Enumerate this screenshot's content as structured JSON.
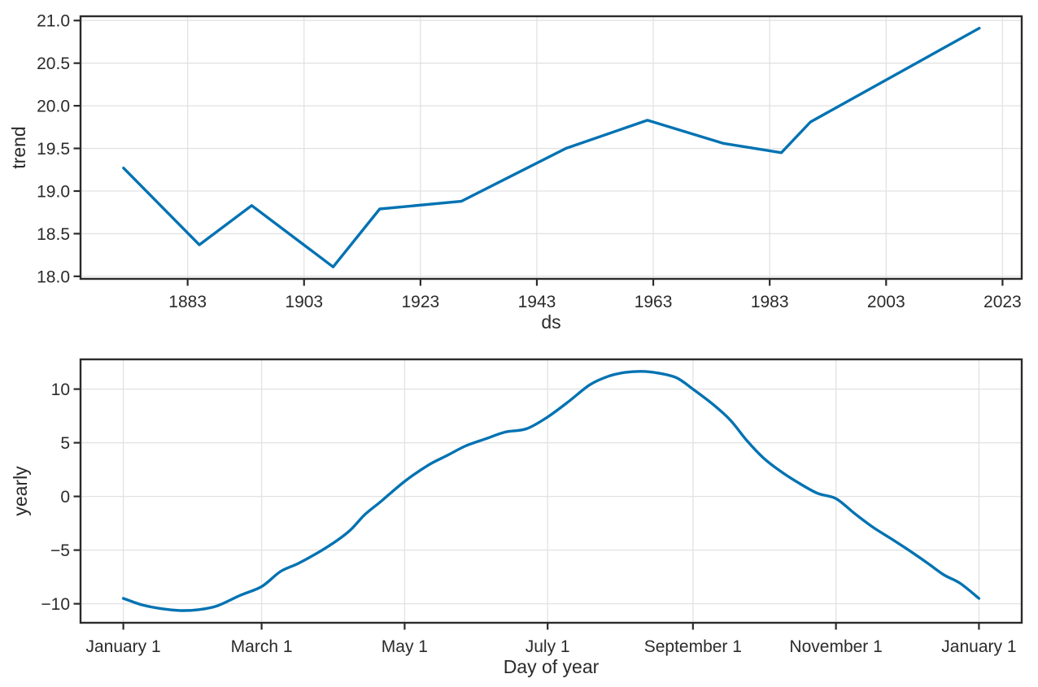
{
  "figure": {
    "background": "#ffffff",
    "line_color": "#0072B2",
    "grid_color": "#e2e2e2",
    "spine_color": "#2b2b2b",
    "text_color": "#2b2b2b"
  },
  "chart_data": [
    {
      "id": "trend",
      "type": "line",
      "title": "",
      "xlabel": "ds",
      "ylabel": "trend",
      "xlim": [
        1864.6,
        2026.3
      ],
      "ylim": [
        17.97,
        21.05
      ],
      "grid": true,
      "legend_position": "none",
      "xticks": {
        "values": [
          1883,
          1903,
          1923,
          1943,
          1963,
          1983,
          2003,
          2023
        ],
        "labels": [
          "1883",
          "1903",
          "1923",
          "1943",
          "1963",
          "1983",
          "2003",
          "2023"
        ]
      },
      "yticks": {
        "values": [
          18.0,
          18.5,
          19.0,
          19.5,
          20.0,
          20.5,
          21.0
        ],
        "labels": [
          "18.0",
          "18.5",
          "19.0",
          "19.5",
          "20.0",
          "20.5",
          "21.0"
        ]
      },
      "x": [
        1872,
        1885,
        1894,
        1908,
        1916,
        1930,
        1948,
        1962,
        1975,
        1985,
        1990,
        2019
      ],
      "y": [
        19.27,
        18.37,
        18.83,
        18.11,
        18.79,
        18.88,
        19.5,
        19.83,
        19.56,
        19.45,
        19.81,
        20.91
      ],
      "smooth": false
    },
    {
      "id": "yearly",
      "type": "line",
      "title": "",
      "xlabel": "Day of year",
      "ylabel": "yearly",
      "xlim": [
        -18.25,
        383.25
      ],
      "ylim": [
        -11.77,
        12.77
      ],
      "grid": true,
      "legend_position": "none",
      "xticks": {
        "values": [
          0,
          59,
          120,
          181,
          243,
          304,
          365
        ],
        "labels": [
          "January 1",
          "March 1",
          "May 1",
          "July 1",
          "September 1",
          "November 1",
          "January 1"
        ]
      },
      "yticks": {
        "values": [
          -10,
          -5,
          0,
          5,
          10
        ],
        "labels": [
          "−10",
          "−5",
          "0",
          "5",
          "10"
        ]
      },
      "x": [
        0,
        8,
        16,
        24,
        32,
        40,
        50,
        59,
        67,
        75,
        86,
        96,
        103,
        110,
        120,
        130,
        138,
        146,
        155,
        163,
        172,
        181,
        190,
        199,
        207,
        214,
        221,
        228,
        236,
        243,
        252,
        259,
        266,
        273,
        280,
        287,
        296,
        304,
        312,
        320,
        328,
        335,
        343,
        350,
        357,
        365
      ],
      "y": [
        -9.5,
        -10.1,
        -10.45,
        -10.63,
        -10.55,
        -10.2,
        -9.2,
        -8.4,
        -7.0,
        -6.2,
        -4.85,
        -3.3,
        -1.7,
        -0.45,
        1.4,
        2.9,
        3.8,
        4.7,
        5.4,
        6.0,
        6.3,
        7.4,
        8.85,
        10.4,
        11.2,
        11.55,
        11.65,
        11.5,
        11.05,
        10.0,
        8.5,
        7.1,
        5.2,
        3.6,
        2.4,
        1.4,
        0.3,
        -0.2,
        -1.6,
        -2.9,
        -4.0,
        -5.0,
        -6.2,
        -7.3,
        -8.1,
        -9.5
      ],
      "smooth": true
    }
  ]
}
